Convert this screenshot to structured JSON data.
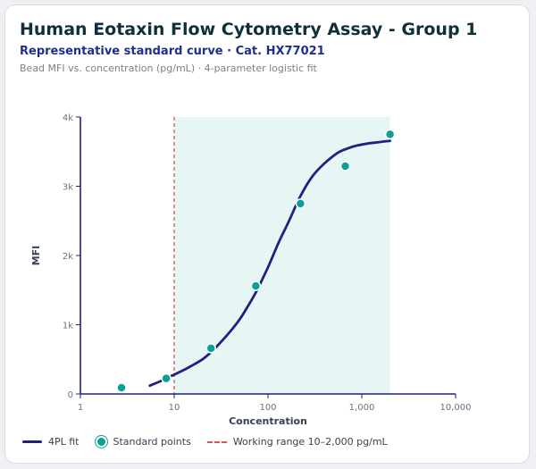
{
  "header": {
    "title": "Human Eotaxin Flow Cytometry Assay - Group 1",
    "subtitle": "Representative standard curve · Cat. HX77021",
    "caption": "Bead MFI vs. concentration (pg/mL) · 4-parameter logistic fit"
  },
  "colors": {
    "fit": "#1f2280",
    "points": "#0d9f96",
    "range_line": "#d9534f",
    "range_fill": "#e6f6f5"
  },
  "legend": {
    "fit": "4PL fit",
    "points": "Standard points",
    "range": "Working range 10–2,000 pg/mL"
  },
  "chart_data": {
    "type": "scatter",
    "xlabel": "Concentration",
    "ylabel": "MFI",
    "xscale": "log",
    "xlim": [
      1,
      10000
    ],
    "ylim": [
      0,
      4000
    ],
    "x_ticks": [
      1,
      10,
      100,
      1000,
      10000
    ],
    "x_tick_labels": [
      "1",
      "10",
      "100",
      "1,000",
      "10,000"
    ],
    "y_ticks": [
      0,
      1000,
      2000,
      3000,
      4000
    ],
    "y_tick_labels": [
      "0",
      "1k",
      "2k",
      "3k",
      "4k"
    ],
    "working_range": [
      10,
      2000
    ],
    "points": {
      "name": "Standard points",
      "x": [
        2.74,
        8.23,
        24.7,
        74.1,
        222,
        667,
        2000
      ],
      "y": [
        90,
        225,
        660,
        1560,
        2750,
        3290,
        3750
      ]
    },
    "fit": {
      "name": "4PL fit",
      "x": [
        5.5,
        7,
        9,
        12,
        15,
        20,
        25,
        30,
        40,
        50,
        60,
        75,
        100,
        130,
        165,
        222,
        300,
        400,
        550,
        700,
        900,
        1200,
        1600,
        2000
      ],
      "y": [
        120,
        180,
        250,
        330,
        400,
        500,
        610,
        720,
        910,
        1080,
        1250,
        1480,
        1830,
        2190,
        2480,
        2860,
        3150,
        3330,
        3480,
        3545,
        3590,
        3620,
        3640,
        3655
      ]
    },
    "legend_position": "bottom",
    "grid": false
  }
}
